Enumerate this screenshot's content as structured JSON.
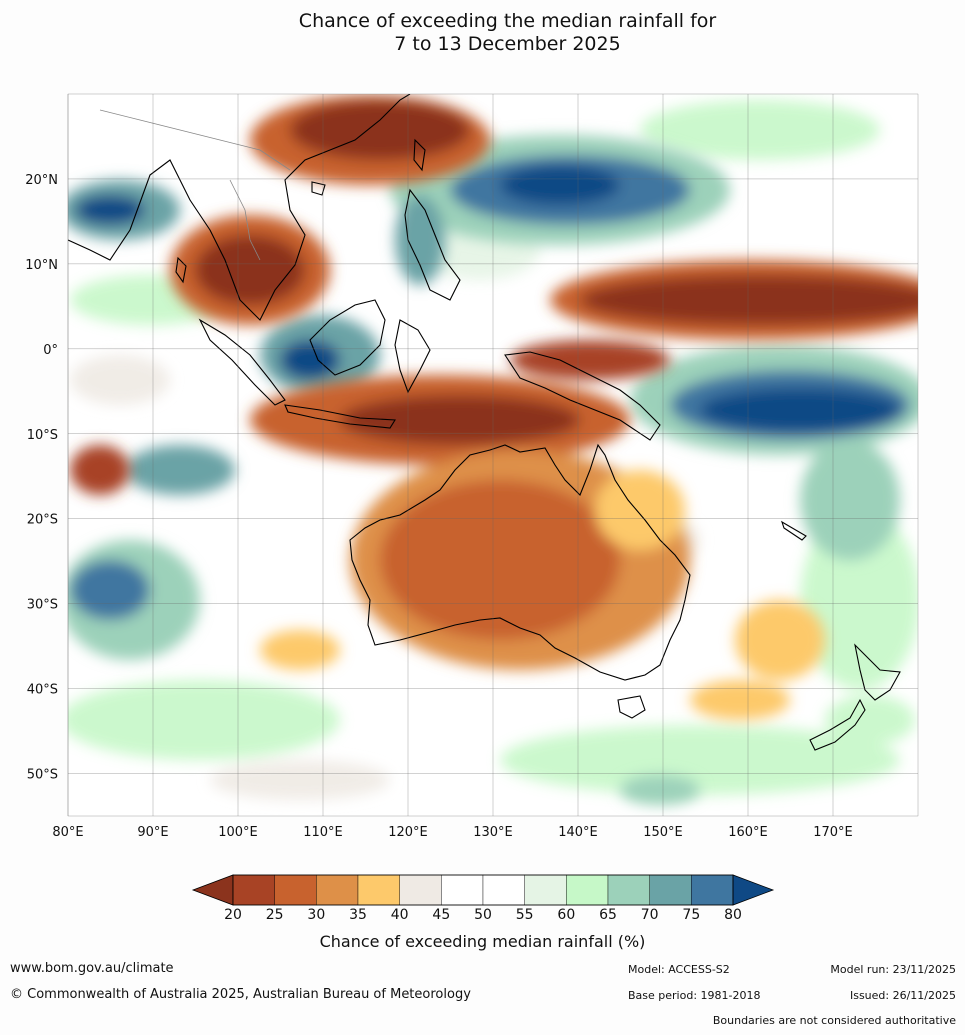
{
  "title": {
    "line1": "Chance of exceeding the median rainfall for",
    "line2": "7 to 13 December 2025"
  },
  "map": {
    "lon_min": 80,
    "lon_max": 180,
    "lat_min": -55,
    "lat_max": 30,
    "lon_labels": [
      "80°E",
      "90°E",
      "100°E",
      "110°E",
      "120°E",
      "130°E",
      "140°E",
      "150°E",
      "160°E",
      "170°E"
    ],
    "lat_labels": [
      "20°N",
      "10°N",
      "0°",
      "10°S",
      "20°S",
      "30°S",
      "40°S",
      "50°S"
    ],
    "regions": [
      {
        "name": "north-pacific-dry-band",
        "lon": [
          130,
          180
        ],
        "lat": [
          2,
          10
        ],
        "class": "20-25"
      },
      {
        "name": "south-china-dry",
        "lon": [
          110,
          140
        ],
        "lat": [
          20,
          30
        ],
        "class": "20-25"
      },
      {
        "name": "indochina-dry",
        "lon": [
          98,
          113
        ],
        "lat": [
          5,
          15
        ],
        "class": "20-25"
      },
      {
        "name": "indonesia-dry",
        "lon": [
          112,
          138
        ],
        "lat": [
          -14,
          -5
        ],
        "class": "20-25"
      },
      {
        "name": "australia-dry",
        "lon": [
          113,
          153
        ],
        "lat": [
          -38,
          -12
        ],
        "class": "25-35"
      },
      {
        "name": "west-pacific-wet",
        "lon": [
          140,
          160
        ],
        "lat": [
          15,
          25
        ],
        "class": "75-80"
      },
      {
        "name": "sw-pacific-wet",
        "lon": [
          150,
          180
        ],
        "lat": [
          -10,
          -2
        ],
        "class": "75-80"
      },
      {
        "name": "borneo-wet",
        "lon": [
          104,
          112
        ],
        "lat": [
          -3,
          1
        ],
        "class": "75-80"
      },
      {
        "name": "indian-ocean-wet",
        "lon": [
          80,
          95
        ],
        "lat": [
          -32,
          -25
        ],
        "class": "70-75"
      }
    ]
  },
  "colorbar": {
    "label": "Chance of exceeding median rainfall (%)",
    "ticks": [
      "20",
      "25",
      "30",
      "35",
      "40",
      "45",
      "50",
      "55",
      "60",
      "65",
      "70",
      "75",
      "80"
    ],
    "colors": [
      "#a84325",
      "#c8622e",
      "#de9048",
      "#fdc96b",
      "#efeae4",
      "#ffffff",
      "#ffffff",
      "#e5f4e5",
      "#c6f8c8",
      "#9cd1ba",
      "#6aa3a6",
      "#3f76a0"
    ],
    "under_color": "#8b331d",
    "over_color": "#0f4985"
  },
  "footer": {
    "website": "www.bom.gov.au/climate",
    "copyright": "© Commonwealth of Australia 2025, Australian Bureau of Meteorology",
    "model": "Model: ACCESS-S2",
    "base_period": "Base period: 1981-2018",
    "model_run": "Model run: 23/11/2025",
    "issued": "Issued: 26/11/2025",
    "disclaimer": "Boundaries are not considered authoritative"
  }
}
